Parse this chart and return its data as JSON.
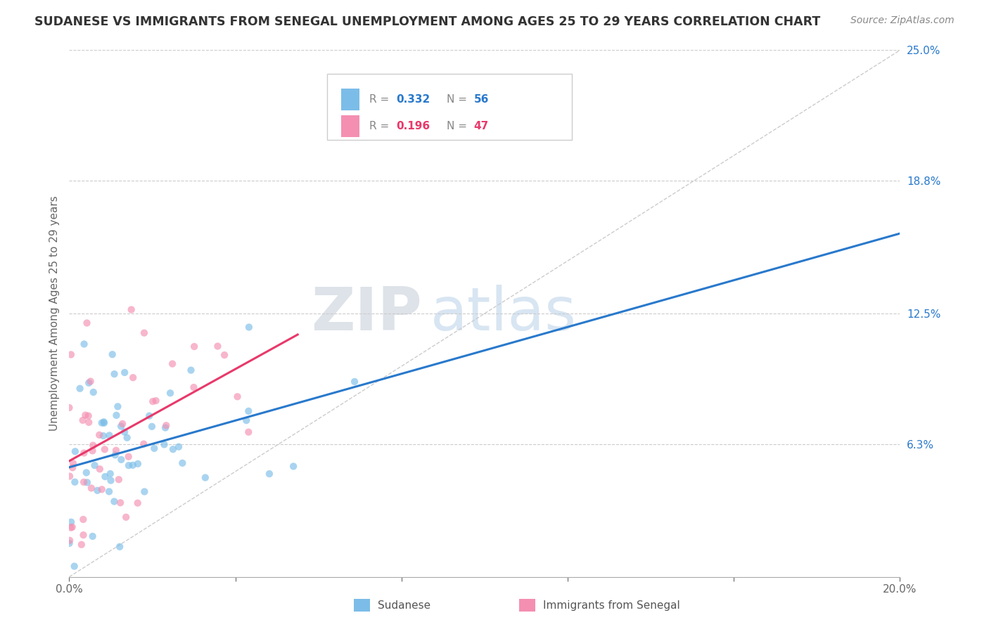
{
  "title": "SUDANESE VS IMMIGRANTS FROM SENEGAL UNEMPLOYMENT AMONG AGES 25 TO 29 YEARS CORRELATION CHART",
  "source": "Source: ZipAtlas.com",
  "ylabel": "Unemployment Among Ages 25 to 29 years",
  "xlim": [
    0.0,
    0.2
  ],
  "ylim": [
    0.0,
    0.25
  ],
  "xticks": [
    0.0,
    0.04,
    0.08,
    0.12,
    0.16,
    0.2
  ],
  "ytick_labels": [
    "6.3%",
    "12.5%",
    "18.8%",
    "25.0%"
  ],
  "ytick_values": [
    0.063,
    0.125,
    0.188,
    0.25
  ],
  "blue_color": "#7bbde8",
  "pink_color": "#f48fb1",
  "blue_line_color": "#2979cc",
  "pink_line_color": "#e8396a",
  "blue_R": 0.332,
  "blue_N": 56,
  "pink_R": 0.196,
  "pink_N": 47,
  "blue_label": "Sudanese",
  "pink_label": "Immigrants from Senegal",
  "watermark_zip": "ZIP",
  "watermark_atlas": "atlas",
  "blue_line_x0": 0.0,
  "blue_line_y0": 0.052,
  "blue_line_x1": 0.2,
  "blue_line_y1": 0.163,
  "pink_line_x0": 0.0,
  "pink_line_y0": 0.055,
  "pink_line_x1": 0.055,
  "pink_line_y1": 0.115
}
